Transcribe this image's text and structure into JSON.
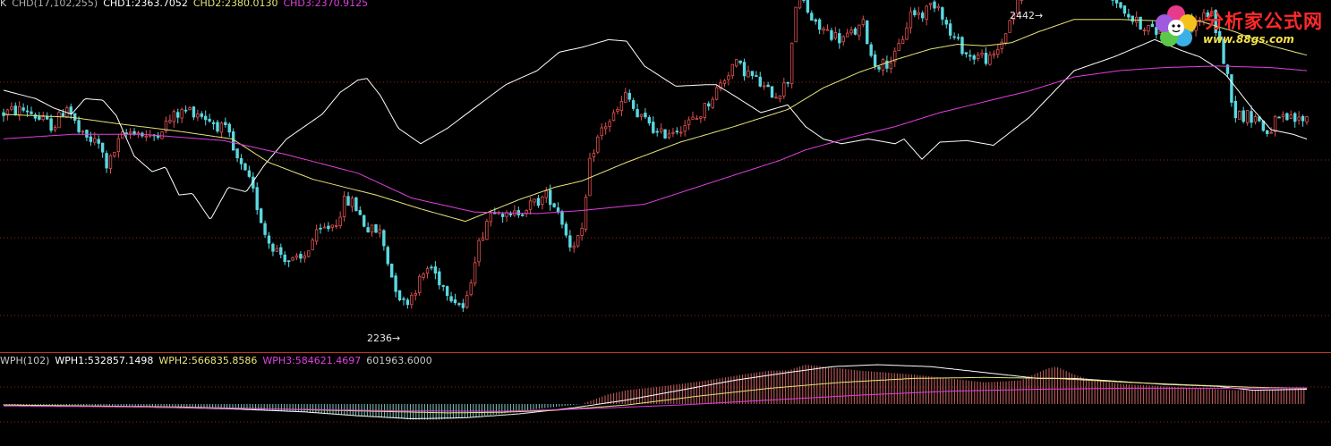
{
  "colors": {
    "background": "#000000",
    "up": "#e05050",
    "down": "#5ad8e0",
    "ma_short": "#ffffff",
    "ma_mid": "#e8e47a",
    "ma_long": "#e040e0",
    "grid": "#8a2a10",
    "divider": "#c8361a"
  },
  "top_legend": {
    "prefix": "K",
    "name": "CHD(17,102,255)",
    "chd1": "CHD1:2363.7052",
    "chd2": "CHD2:2380.0130",
    "chd3": "CHD3:2370.9125"
  },
  "bottom_legend": {
    "name": "WPH(102)",
    "wph1": "WPH1:532857.1498",
    "wph2": "WPH2:566835.8586",
    "wph3": "WPH3:584621.4697",
    "value": "601963.6000"
  },
  "annotations": {
    "high": "2442",
    "low": "2236"
  },
  "watermark": {
    "title": "分析家公式网",
    "url": "www.88gs.com"
  },
  "chart_data": {
    "type": "line",
    "x_count": 330,
    "price_ylim": [
      2236,
      2442
    ],
    "series": [
      {
        "name": "CHD1",
        "last": 2363.7052,
        "anchors": [
          [
            0,
            2396
          ],
          [
            40,
            2390
          ],
          [
            60,
            2384
          ],
          [
            80,
            2380
          ],
          [
            95,
            2390
          ],
          [
            115,
            2389
          ],
          [
            130,
            2379
          ],
          [
            150,
            2353
          ],
          [
            170,
            2343
          ],
          [
            185,
            2346
          ],
          [
            200,
            2328
          ],
          [
            215,
            2329
          ],
          [
            235,
            2312
          ],
          [
            255,
            2333
          ],
          [
            275,
            2330
          ],
          [
            295,
            2347
          ],
          [
            320,
            2364
          ],
          [
            340,
            2372
          ],
          [
            360,
            2380
          ],
          [
            380,
            2394
          ],
          [
            400,
            2402
          ],
          [
            410,
            2403
          ],
          [
            425,
            2392
          ],
          [
            445,
            2371
          ],
          [
            470,
            2361
          ],
          [
            500,
            2371
          ],
          [
            530,
            2384
          ],
          [
            565,
            2399
          ],
          [
            600,
            2408
          ],
          [
            625,
            2420
          ],
          [
            650,
            2423
          ],
          [
            680,
            2428
          ],
          [
            700,
            2427
          ],
          [
            720,
            2411
          ],
          [
            755,
            2398
          ],
          [
            790,
            2399
          ],
          [
            800,
            2399
          ],
          [
            820,
            2392
          ],
          [
            850,
            2381
          ],
          [
            880,
            2386
          ],
          [
            900,
            2372
          ],
          [
            920,
            2364
          ],
          [
            940,
            2361
          ],
          [
            970,
            2364
          ],
          [
            1000,
            2361
          ],
          [
            1010,
            2364
          ],
          [
            1030,
            2351
          ],
          [
            1050,
            2362
          ],
          [
            1080,
            2363
          ],
          [
            1110,
            2360
          ],
          [
            1150,
            2378
          ],
          [
            1200,
            2408
          ],
          [
            1245,
            2417
          ],
          [
            1290,
            2428
          ],
          [
            1320,
            2421
          ],
          [
            1340,
            2417
          ],
          [
            1359,
            2410
          ],
          [
            1370,
            2405
          ],
          [
            1385,
            2394
          ],
          [
            1400,
            2383
          ],
          [
            1420,
            2370
          ],
          [
            1445,
            2367
          ],
          [
            1460,
            2364
          ]
        ]
      },
      {
        "name": "CHD2",
        "last": 2380.013,
        "anchors": [
          [
            0,
            2380
          ],
          [
            80,
            2378
          ],
          [
            130,
            2374
          ],
          [
            200,
            2369
          ],
          [
            260,
            2364
          ],
          [
            300,
            2349
          ],
          [
            350,
            2338
          ],
          [
            420,
            2328
          ],
          [
            470,
            2319
          ],
          [
            520,
            2311
          ],
          [
            580,
            2325
          ],
          [
            620,
            2333
          ],
          [
            650,
            2337
          ],
          [
            700,
            2349
          ],
          [
            760,
            2362
          ],
          [
            820,
            2372
          ],
          [
            880,
            2383
          ],
          [
            920,
            2397
          ],
          [
            960,
            2407
          ],
          [
            1000,
            2415
          ],
          [
            1040,
            2422
          ],
          [
            1070,
            2425
          ],
          [
            1100,
            2424
          ],
          [
            1130,
            2426
          ],
          [
            1160,
            2433
          ],
          [
            1200,
            2441
          ],
          [
            1250,
            2441
          ],
          [
            1300,
            2440
          ],
          [
            1340,
            2440
          ],
          [
            1380,
            2433
          ],
          [
            1420,
            2424
          ],
          [
            1460,
            2418
          ]
        ]
      },
      {
        "name": "CHD3",
        "last": 2370.9125,
        "anchors": [
          [
            0,
            2364
          ],
          [
            80,
            2367
          ],
          [
            160,
            2367
          ],
          [
            250,
            2363
          ],
          [
            320,
            2354
          ],
          [
            400,
            2342
          ],
          [
            460,
            2326
          ],
          [
            530,
            2317
          ],
          [
            600,
            2316
          ],
          [
            650,
            2318
          ],
          [
            720,
            2322
          ],
          [
            800,
            2337
          ],
          [
            870,
            2350
          ],
          [
            900,
            2357
          ],
          [
            950,
            2365
          ],
          [
            1000,
            2372
          ],
          [
            1050,
            2381
          ],
          [
            1100,
            2388
          ],
          [
            1150,
            2395
          ],
          [
            1200,
            2404
          ],
          [
            1250,
            2408
          ],
          [
            1300,
            2410
          ],
          [
            1360,
            2411
          ],
          [
            1420,
            2410
          ],
          [
            1460,
            2408
          ]
        ]
      }
    ],
    "candles_shape": [
      [
        0,
        2380
      ],
      [
        12,
        2382
      ],
      [
        30,
        2383
      ],
      [
        46,
        2376
      ],
      [
        60,
        2372
      ],
      [
        75,
        2386
      ],
      [
        90,
        2366
      ],
      [
        110,
        2361
      ],
      [
        120,
        2346
      ],
      [
        135,
        2365
      ],
      [
        150,
        2370
      ],
      [
        168,
        2364
      ],
      [
        180,
        2371
      ],
      [
        195,
        2379
      ],
      [
        210,
        2383
      ],
      [
        222,
        2381
      ],
      [
        240,
        2374
      ],
      [
        255,
        2368
      ],
      [
        262,
        2353
      ],
      [
        280,
        2335
      ],
      [
        298,
        2300
      ],
      [
        310,
        2292
      ],
      [
        325,
        2285
      ],
      [
        338,
        2286
      ],
      [
        350,
        2300
      ],
      [
        362,
        2306
      ],
      [
        375,
        2310
      ],
      [
        385,
        2324
      ],
      [
        395,
        2323
      ],
      [
        410,
        2306
      ],
      [
        425,
        2304
      ],
      [
        438,
        2275
      ],
      [
        450,
        2258
      ],
      [
        458,
        2262
      ],
      [
        468,
        2272
      ],
      [
        480,
        2283
      ],
      [
        492,
        2272
      ],
      [
        505,
        2263
      ],
      [
        520,
        2254
      ],
      [
        530,
        2287
      ],
      [
        545,
        2314
      ],
      [
        555,
        2322
      ],
      [
        568,
        2312
      ],
      [
        580,
        2318
      ],
      [
        598,
        2323
      ],
      [
        612,
        2328
      ],
      [
        625,
        2317
      ],
      [
        636,
        2296
      ],
      [
        650,
        2302
      ],
      [
        660,
        2353
      ],
      [
        672,
        2370
      ],
      [
        690,
        2382
      ],
      [
        700,
        2393
      ],
      [
        712,
        2378
      ],
      [
        726,
        2375
      ],
      [
        735,
        2366
      ],
      [
        752,
        2370
      ],
      [
        768,
        2374
      ],
      [
        780,
        2378
      ],
      [
        793,
        2389
      ],
      [
        808,
        2402
      ],
      [
        820,
        2413
      ],
      [
        832,
        2408
      ],
      [
        845,
        2402
      ],
      [
        856,
        2395
      ],
      [
        868,
        2393
      ],
      [
        880,
        2401
      ],
      [
        888,
        2446
      ],
      [
        893,
        2467
      ],
      [
        898,
        2452
      ],
      [
        910,
        2437
      ],
      [
        925,
        2433
      ],
      [
        940,
        2428
      ],
      [
        958,
        2434
      ],
      [
        965,
        2438
      ],
      [
        975,
        2413
      ],
      [
        988,
        2412
      ],
      [
        1000,
        2417
      ],
      [
        1010,
        2432
      ],
      [
        1018,
        2446
      ],
      [
        1030,
        2444
      ],
      [
        1042,
        2452
      ],
      [
        1050,
        2450
      ],
      [
        1060,
        2432
      ],
      [
        1072,
        2425
      ],
      [
        1082,
        2417
      ],
      [
        1095,
        2418
      ],
      [
        1108,
        2414
      ],
      [
        1118,
        2425
      ],
      [
        1130,
        2443
      ],
      [
        1140,
        2455
      ],
      [
        1148,
        2468
      ],
      [
        1158,
        2483
      ],
      [
        1168,
        2490
      ],
      [
        1178,
        2479
      ],
      [
        1192,
        2466
      ],
      [
        1206,
        2468
      ],
      [
        1220,
        2470
      ],
      [
        1232,
        2467
      ],
      [
        1245,
        2455
      ],
      [
        1258,
        2446
      ],
      [
        1268,
        2439
      ],
      [
        1280,
        2437
      ],
      [
        1292,
        2432
      ],
      [
        1305,
        2441
      ],
      [
        1318,
        2441
      ],
      [
        1330,
        2436
      ],
      [
        1342,
        2442
      ],
      [
        1352,
        2446
      ],
      [
        1360,
        2432
      ],
      [
        1370,
        2408
      ],
      [
        1380,
        2380
      ],
      [
        1392,
        2379
      ],
      [
        1404,
        2378
      ],
      [
        1415,
        2367
      ],
      [
        1425,
        2375
      ],
      [
        1438,
        2377
      ],
      [
        1450,
        2376
      ],
      [
        1460,
        2378
      ]
    ],
    "wph_series": [
      {
        "name": "WPH1",
        "last": 532857.1498,
        "anchors": [
          [
            0,
            0.995
          ],
          [
            80,
            0.99
          ],
          [
            160,
            0.985
          ],
          [
            260,
            0.975
          ],
          [
            340,
            0.96
          ],
          [
            400,
            0.94
          ],
          [
            460,
            0.925
          ],
          [
            520,
            0.93
          ],
          [
            580,
            0.95
          ],
          [
            640,
            0.98
          ],
          [
            700,
            1.02
          ],
          [
            760,
            1.07
          ],
          [
            820,
            1.12
          ],
          [
            880,
            1.16
          ],
          [
            930,
            1.19
          ],
          [
            980,
            1.2
          ],
          [
            1040,
            1.19
          ],
          [
            1100,
            1.16
          ],
          [
            1160,
            1.13
          ],
          [
            1200,
            1.13
          ],
          [
            1250,
            1.115
          ],
          [
            1300,
            1.1
          ],
          [
            1360,
            1.09
          ],
          [
            1400,
            1.07
          ],
          [
            1460,
            1.075
          ]
        ]
      },
      {
        "name": "WPH2",
        "last": 566835.8586,
        "anchors": [
          [
            0,
            0.995
          ],
          [
            100,
            0.99
          ],
          [
            200,
            0.985
          ],
          [
            300,
            0.975
          ],
          [
            400,
            0.965
          ],
          [
            500,
            0.955
          ],
          [
            560,
            0.958
          ],
          [
            620,
            0.968
          ],
          [
            700,
            0.995
          ],
          [
            780,
            1.04
          ],
          [
            860,
            1.08
          ],
          [
            940,
            1.11
          ],
          [
            1020,
            1.13
          ],
          [
            1100,
            1.135
          ],
          [
            1180,
            1.13
          ],
          [
            1260,
            1.11
          ],
          [
            1340,
            1.095
          ],
          [
            1400,
            1.085
          ],
          [
            1460,
            1.08
          ]
        ]
      },
      {
        "name": "WPH3",
        "last": 584621.4697,
        "anchors": [
          [
            0,
            0.99
          ],
          [
            150,
            0.985
          ],
          [
            300,
            0.975
          ],
          [
            450,
            0.965
          ],
          [
            560,
            0.963
          ],
          [
            650,
            0.975
          ],
          [
            760,
            0.995
          ],
          [
            860,
            1.02
          ],
          [
            960,
            1.045
          ],
          [
            1060,
            1.065
          ],
          [
            1160,
            1.075
          ],
          [
            1260,
            1.08
          ],
          [
            1360,
            1.08
          ],
          [
            1460,
            1.082
          ]
        ]
      }
    ],
    "wph_hist_shape": [
      [
        0,
        0.997
      ],
      [
        80,
        0.993
      ],
      [
        160,
        0.988
      ],
      [
        260,
        0.975
      ],
      [
        330,
        0.96
      ],
      [
        370,
        0.95
      ],
      [
        420,
        0.935
      ],
      [
        460,
        0.92
      ],
      [
        490,
        0.92
      ],
      [
        520,
        0.93
      ],
      [
        560,
        0.95
      ],
      [
        600,
        0.975
      ],
      [
        650,
        1.0
      ],
      [
        680,
        1.05
      ],
      [
        700,
        1.07
      ],
      [
        740,
        1.09
      ],
      [
        790,
        1.12
      ],
      [
        830,
        1.15
      ],
      [
        860,
        1.17
      ],
      [
        880,
        1.17
      ],
      [
        900,
        1.2
      ],
      [
        920,
        1.19
      ],
      [
        960,
        1.17
      ],
      [
        990,
        1.16
      ],
      [
        1020,
        1.15
      ],
      [
        1060,
        1.13
      ],
      [
        1100,
        1.11
      ],
      [
        1140,
        1.12
      ],
      [
        1170,
        1.18
      ],
      [
        1180,
        1.19
      ],
      [
        1200,
        1.15
      ],
      [
        1220,
        1.12
      ],
      [
        1260,
        1.1
      ],
      [
        1300,
        1.09
      ],
      [
        1340,
        1.08
      ],
      [
        1380,
        1.07
      ],
      [
        1420,
        1.075
      ],
      [
        1460,
        1.085
      ]
    ]
  }
}
